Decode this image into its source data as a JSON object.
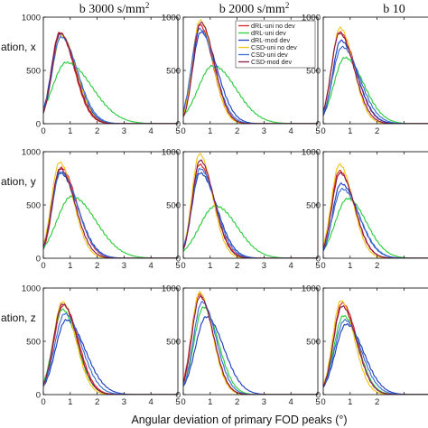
{
  "figure": {
    "col_titles": [
      {
        "text": "b 3000",
        "unit": " s/mm",
        "sup": "2"
      },
      {
        "text": "b 2000",
        "unit": " s/mm",
        "sup": "2"
      },
      {
        "text": "b 10",
        "unit": "",
        "sup": ""
      }
    ],
    "row_labels": [
      "ation, x",
      "ation, y",
      "ation, z"
    ],
    "xlabel": "Angular deviation of primary FOD peaks (°)"
  },
  "chart_data": {
    "type": "line",
    "x_ticks": [
      0,
      1,
      2,
      3,
      4,
      5
    ],
    "y_ticks": [
      0,
      500,
      1000
    ],
    "xlim": [
      0,
      5
    ],
    "ylim": [
      0,
      1000
    ],
    "grid": false,
    "legend_position": "top-right (panel row 1, column 2)",
    "series_styles": [
      {
        "name": "dRL-uni no dev",
        "color": "#d62728"
      },
      {
        "name": "dRL-uni dev",
        "color": "#2ecc40"
      },
      {
        "name": "dRL-mod dev",
        "color": "#1f3fbf"
      },
      {
        "name": "CSD-uni no dev",
        "color": "#f2c618"
      },
      {
        "name": "CSD-uni dev",
        "color": "#3b6fd0"
      },
      {
        "name": "CSD-mod dev",
        "color": "#8b1a4a"
      }
    ],
    "panels": [
      {
        "row": 0,
        "col": 0,
        "series": [
          {
            "peak": 855,
            "xpk": 0.6,
            "sL": 0.3,
            "sR": 0.55
          },
          {
            "peak": 575,
            "xpk": 0.85,
            "sL": 0.5,
            "sR": 0.95
          },
          {
            "peak": 840,
            "xpk": 0.62,
            "sL": 0.32,
            "sR": 0.6
          },
          {
            "peak": 830,
            "xpk": 0.68,
            "sL": 0.34,
            "sR": 0.55
          },
          {
            "peak": 815,
            "xpk": 0.65,
            "sL": 0.32,
            "sR": 0.62
          },
          {
            "peak": 850,
            "xpk": 0.62,
            "sL": 0.3,
            "sR": 0.56
          }
        ]
      },
      {
        "row": 0,
        "col": 1,
        "series": [
          {
            "peak": 930,
            "xpk": 0.6,
            "sL": 0.28,
            "sR": 0.5
          },
          {
            "peak": 545,
            "xpk": 1.1,
            "sL": 0.55,
            "sR": 0.85
          },
          {
            "peak": 860,
            "xpk": 0.65,
            "sL": 0.3,
            "sR": 0.6
          },
          {
            "peak": 970,
            "xpk": 0.62,
            "sL": 0.28,
            "sR": 0.48
          },
          {
            "peak": 890,
            "xpk": 0.6,
            "sL": 0.3,
            "sR": 0.56
          },
          {
            "peak": 950,
            "xpk": 0.65,
            "sL": 0.28,
            "sR": 0.5
          }
        ]
      },
      {
        "row": 0,
        "col": 2,
        "series": [
          {
            "peak": 860,
            "xpk": 0.6,
            "sL": 0.3,
            "sR": 0.6
          },
          {
            "peak": 620,
            "xpk": 0.8,
            "sL": 0.4,
            "sR": 0.7
          },
          {
            "peak": 780,
            "xpk": 0.65,
            "sL": 0.3,
            "sR": 0.6
          },
          {
            "peak": 900,
            "xpk": 0.62,
            "sL": 0.3,
            "sR": 0.5
          },
          {
            "peak": 720,
            "xpk": 0.7,
            "sL": 0.35,
            "sR": 0.65
          },
          {
            "peak": 850,
            "xpk": 0.6,
            "sL": 0.3,
            "sR": 0.55
          }
        ]
      },
      {
        "row": 1,
        "col": 0,
        "series": [
          {
            "peak": 850,
            "xpk": 0.65,
            "sL": 0.3,
            "sR": 0.6
          },
          {
            "peak": 580,
            "xpk": 1.05,
            "sL": 0.55,
            "sR": 0.9
          },
          {
            "peak": 800,
            "xpk": 0.62,
            "sL": 0.32,
            "sR": 0.65
          },
          {
            "peak": 900,
            "xpk": 0.6,
            "sL": 0.3,
            "sR": 0.52
          },
          {
            "peak": 810,
            "xpk": 0.65,
            "sL": 0.32,
            "sR": 0.62
          },
          {
            "peak": 840,
            "xpk": 0.62,
            "sL": 0.3,
            "sR": 0.56
          }
        ]
      },
      {
        "row": 1,
        "col": 1,
        "series": [
          {
            "peak": 880,
            "xpk": 0.6,
            "sL": 0.28,
            "sR": 0.55
          },
          {
            "peak": 490,
            "xpk": 1.2,
            "sL": 0.6,
            "sR": 0.8
          },
          {
            "peak": 800,
            "xpk": 0.62,
            "sL": 0.3,
            "sR": 0.62
          },
          {
            "peak": 980,
            "xpk": 0.6,
            "sL": 0.28,
            "sR": 0.48
          },
          {
            "peak": 840,
            "xpk": 0.62,
            "sL": 0.3,
            "sR": 0.58
          },
          {
            "peak": 920,
            "xpk": 0.62,
            "sL": 0.28,
            "sR": 0.52
          }
        ]
      },
      {
        "row": 1,
        "col": 2,
        "series": [
          {
            "peak": 820,
            "xpk": 0.6,
            "sL": 0.3,
            "sR": 0.55
          },
          {
            "peak": 560,
            "xpk": 0.9,
            "sL": 0.45,
            "sR": 0.7
          },
          {
            "peak": 700,
            "xpk": 0.65,
            "sL": 0.3,
            "sR": 0.65
          },
          {
            "peak": 880,
            "xpk": 0.6,
            "sL": 0.3,
            "sR": 0.5
          },
          {
            "peak": 650,
            "xpk": 0.7,
            "sL": 0.35,
            "sR": 0.65
          },
          {
            "peak": 800,
            "xpk": 0.62,
            "sL": 0.3,
            "sR": 0.55
          }
        ]
      },
      {
        "row": 2,
        "col": 0,
        "series": [
          {
            "peak": 840,
            "xpk": 0.75,
            "sL": 0.35,
            "sR": 0.55
          },
          {
            "peak": 800,
            "xpk": 0.7,
            "sL": 0.35,
            "sR": 0.55
          },
          {
            "peak": 700,
            "xpk": 0.85,
            "sL": 0.4,
            "sR": 0.7
          },
          {
            "peak": 870,
            "xpk": 0.7,
            "sL": 0.32,
            "sR": 0.5
          },
          {
            "peak": 760,
            "xpk": 0.8,
            "sL": 0.38,
            "sR": 0.62
          },
          {
            "peak": 850,
            "xpk": 0.72,
            "sL": 0.34,
            "sR": 0.54
          }
        ]
      },
      {
        "row": 2,
        "col": 1,
        "series": [
          {
            "peak": 940,
            "xpk": 0.6,
            "sL": 0.3,
            "sR": 0.5
          },
          {
            "peak": 820,
            "xpk": 0.75,
            "sL": 0.35,
            "sR": 0.55
          },
          {
            "peak": 730,
            "xpk": 0.85,
            "sL": 0.4,
            "sR": 0.65
          },
          {
            "peak": 960,
            "xpk": 0.6,
            "sL": 0.28,
            "sR": 0.48
          },
          {
            "peak": 870,
            "xpk": 0.7,
            "sL": 0.32,
            "sR": 0.52
          },
          {
            "peak": 920,
            "xpk": 0.62,
            "sL": 0.3,
            "sR": 0.5
          }
        ]
      },
      {
        "row": 2,
        "col": 2,
        "series": [
          {
            "peak": 860,
            "xpk": 0.7,
            "sL": 0.32,
            "sR": 0.55
          },
          {
            "peak": 740,
            "xpk": 0.75,
            "sL": 0.35,
            "sR": 0.55
          },
          {
            "peak": 660,
            "xpk": 0.85,
            "sL": 0.4,
            "sR": 0.65
          },
          {
            "peak": 880,
            "xpk": 0.65,
            "sL": 0.3,
            "sR": 0.5
          },
          {
            "peak": 700,
            "xpk": 0.8,
            "sL": 0.38,
            "sR": 0.6
          },
          {
            "peak": 830,
            "xpk": 0.7,
            "sL": 0.32,
            "sR": 0.54
          }
        ]
      }
    ]
  }
}
